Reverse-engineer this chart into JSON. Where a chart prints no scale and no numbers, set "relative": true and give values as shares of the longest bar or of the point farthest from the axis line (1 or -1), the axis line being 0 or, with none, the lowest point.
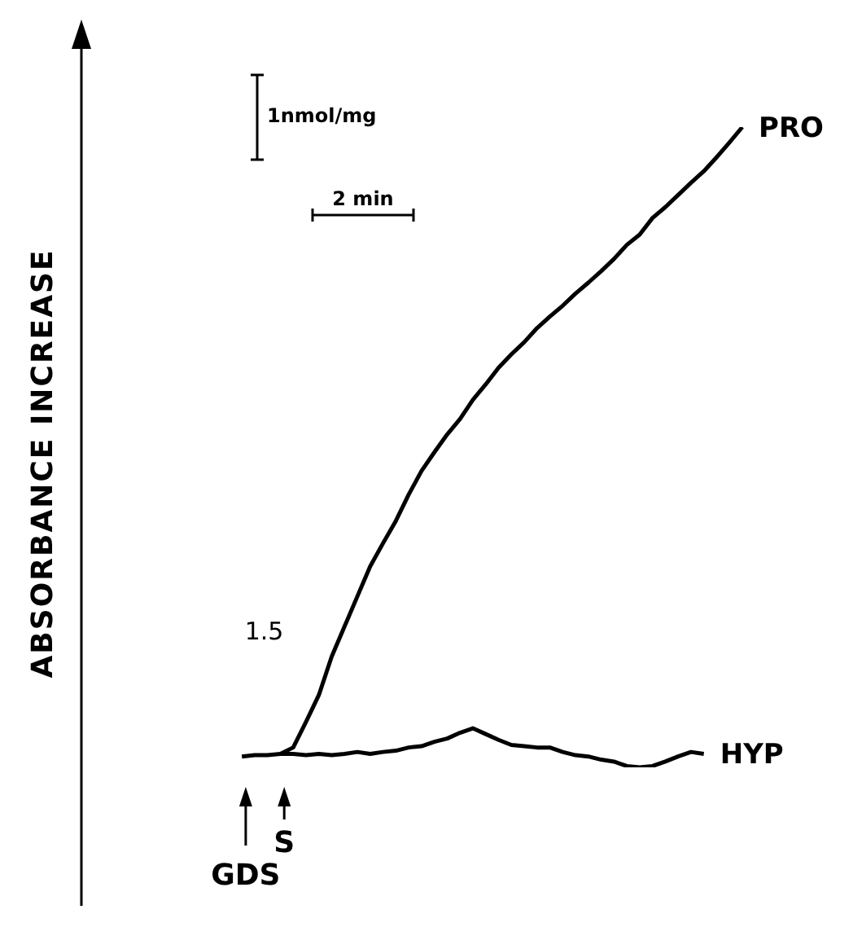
{
  "chart_data": {
    "type": "line",
    "relative": true,
    "ylabel": "ABSORBANCE INCREASE",
    "categories": [
      null,
      null,
      null,
      null,
      null,
      null,
      null,
      null,
      null,
      null,
      null,
      null,
      null,
      null,
      null,
      null,
      null,
      null,
      null,
      null,
      null,
      null,
      null,
      null,
      null,
      null,
      null,
      null,
      null,
      null,
      null,
      null,
      null,
      null,
      null,
      null,
      null,
      null,
      null,
      null,
      null,
      null,
      null,
      null,
      null,
      null,
      null,
      null,
      null,
      null,
      null,
      null
    ],
    "series": [
      {
        "name": "PRO",
        "color": "#000000",
        "values": [
          null,
          null,
          null,
          null,
          null,
          null,
          null,
          null,
          null,
          null,
          null,
          null,
          null,
          null,
          null,
          0.021,
          0.031,
          0.071,
          0.113,
          0.173,
          0.22,
          0.267,
          0.314,
          0.35,
          0.385,
          0.426,
          0.463,
          0.492,
          0.52,
          0.544,
          0.574,
          0.598,
          0.624,
          0.645,
          0.664,
          0.686,
          0.704,
          0.721,
          0.74,
          0.757,
          0.775,
          0.794,
          0.816,
          0.832,
          0.858,
          0.875,
          0.894,
          0.913,
          0.931,
          0.953,
          0.976,
          1
        ]
      },
      {
        "name": "HYP",
        "color": "#000000",
        "values": [
          null,
          null,
          null,
          null,
          null,
          null,
          null,
          null,
          null,
          null,
          null,
          null,
          0.017,
          0.019,
          0.019,
          0.021,
          0.021,
          0.019,
          0.021,
          0.019,
          0.021,
          0.024,
          0.021,
          0.024,
          0.026,
          0.031,
          0.033,
          0.04,
          0.045,
          0.054,
          0.061,
          0.052,
          0.043,
          0.035,
          0.033,
          0.031,
          0.031,
          0.024,
          0.019,
          0.017,
          0.012,
          0.009,
          0.002,
          0,
          0.002,
          0.009,
          0.017,
          0.024,
          0.021,
          null,
          null,
          null
        ]
      }
    ],
    "annotations": [
      "1nmol/mg",
      "2 min",
      "1.5",
      "GDS",
      "S"
    ],
    "marker": "none",
    "line_style": "solid",
    "grid": false,
    "legend": false
  }
}
